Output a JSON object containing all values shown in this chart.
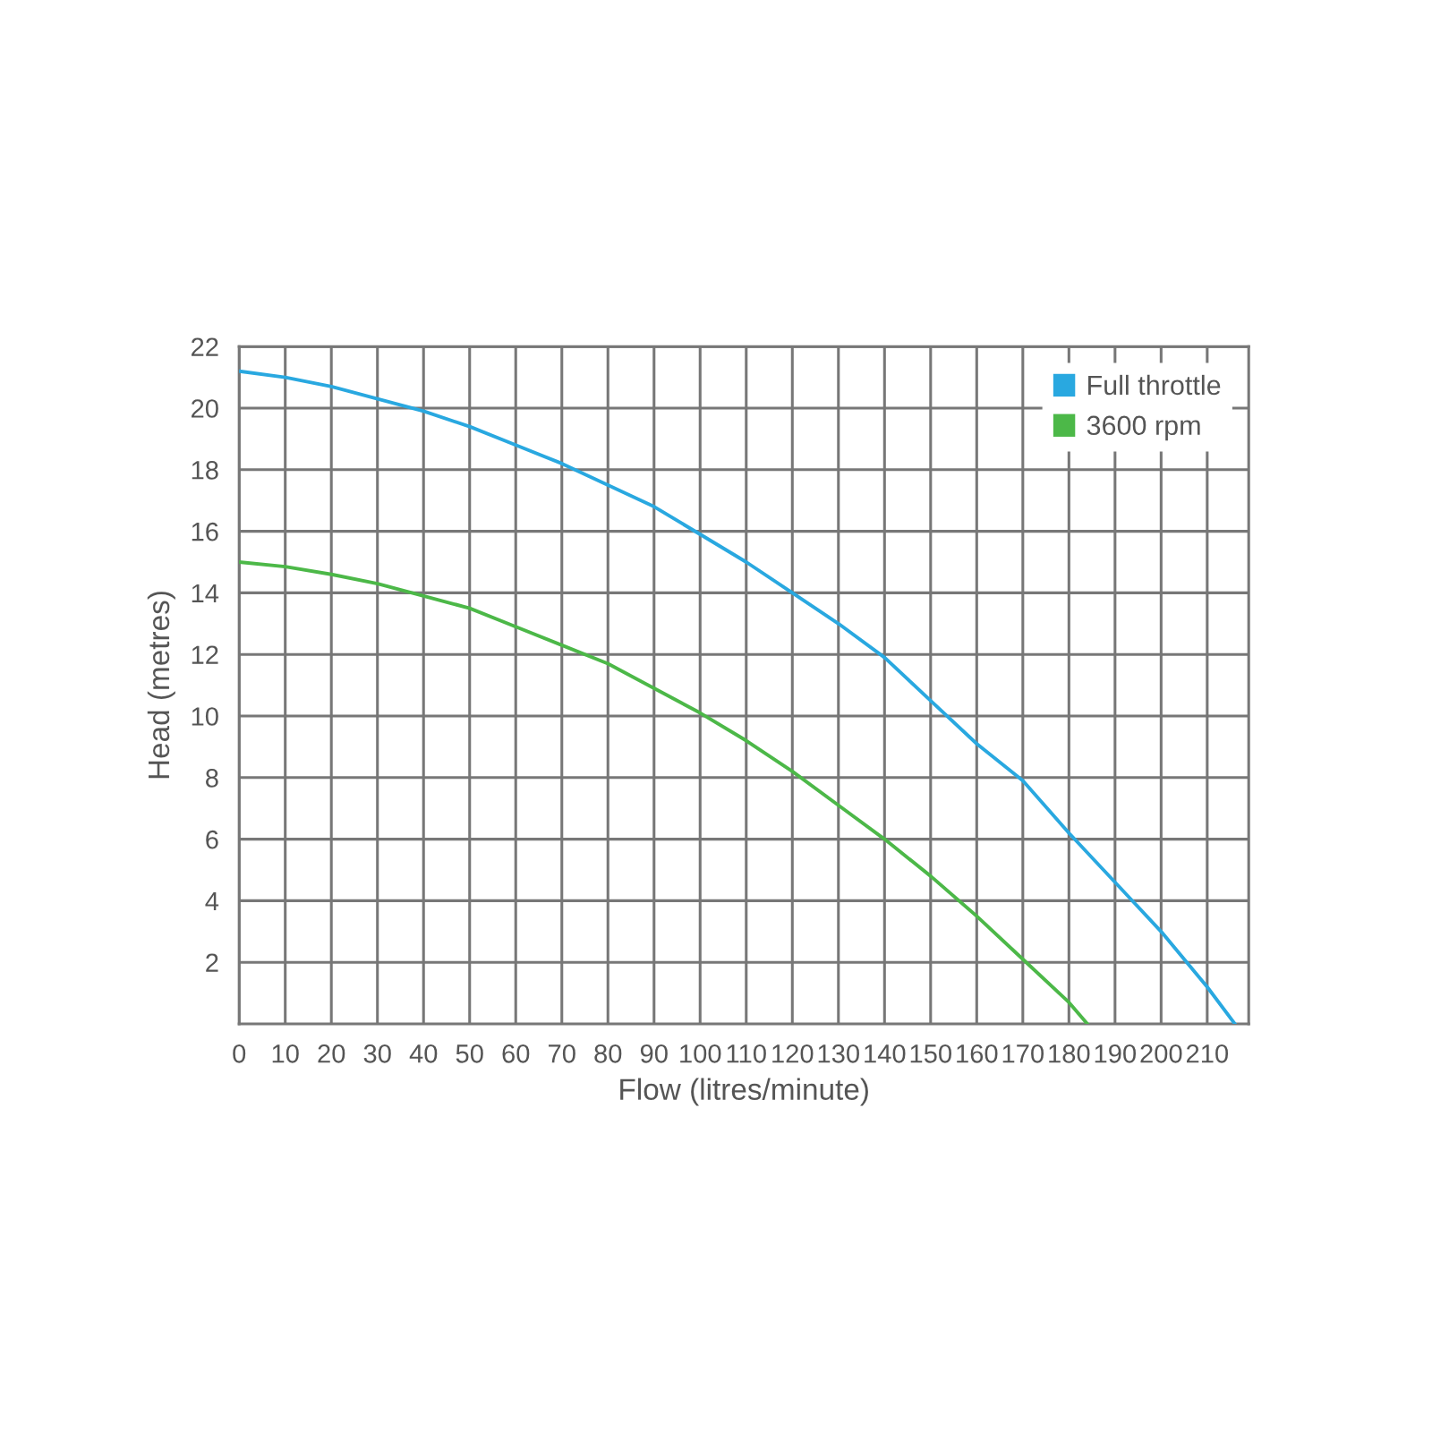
{
  "chart_data": {
    "type": "line",
    "xlabel": "Flow (litres/minute)",
    "ylabel": "Head (metres)",
    "xlim": [
      0,
      219
    ],
    "ylim": [
      0,
      22
    ],
    "xticks": [
      0,
      10,
      20,
      30,
      40,
      50,
      60,
      70,
      80,
      90,
      100,
      110,
      120,
      130,
      140,
      150,
      160,
      170,
      180,
      190,
      200,
      210
    ],
    "yticks": [
      2,
      4,
      6,
      8,
      10,
      12,
      14,
      16,
      18,
      20,
      22
    ],
    "grid": true,
    "legend": "top right",
    "marker": "none",
    "line_style": "solid",
    "series": [
      {
        "name": "Full throttle",
        "color": "#29a8e0",
        "x": [
          0,
          10,
          20,
          30,
          40,
          50,
          60,
          70,
          80,
          90,
          100,
          110,
          120,
          130,
          140,
          150,
          160,
          170,
          180,
          190,
          200,
          210,
          216
        ],
        "values": [
          21.2,
          21.0,
          20.7,
          20.3,
          19.9,
          19.4,
          18.8,
          18.2,
          17.5,
          16.8,
          15.9,
          15.0,
          14.0,
          13.0,
          11.9,
          10.5,
          9.1,
          7.9,
          6.2,
          4.6,
          3.0,
          1.2,
          0
        ]
      },
      {
        "name": "3600 rpm",
        "color": "#4cb848",
        "x": [
          0,
          10,
          20,
          30,
          40,
          50,
          60,
          70,
          80,
          90,
          100,
          110,
          120,
          130,
          140,
          150,
          160,
          170,
          180,
          184
        ],
        "values": [
          15.0,
          14.85,
          14.6,
          14.3,
          13.9,
          13.5,
          12.9,
          12.3,
          11.7,
          10.9,
          10.1,
          9.2,
          8.2,
          7.1,
          6.0,
          4.8,
          3.5,
          2.1,
          0.7,
          0
        ]
      }
    ]
  }
}
